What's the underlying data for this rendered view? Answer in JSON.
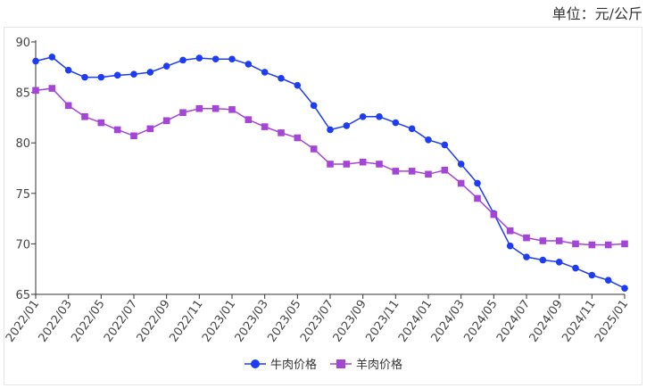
{
  "unit_label": "单位：元/公斤",
  "chart_data": {
    "type": "line",
    "title": "",
    "xlabel": "",
    "ylabel": "",
    "ylim": [
      65,
      90
    ],
    "yticks": [
      65,
      70,
      75,
      80,
      85,
      90
    ],
    "grid": false,
    "legend": "bottom",
    "x": [
      "2022/01",
      "2022/02",
      "2022/03",
      "2022/04",
      "2022/05",
      "2022/06",
      "2022/07",
      "2022/08",
      "2022/09",
      "2022/10",
      "2022/11",
      "2022/12",
      "2023/01",
      "2023/02",
      "2023/03",
      "2023/04",
      "2023/05",
      "2023/06",
      "2023/07",
      "2023/08",
      "2023/09",
      "2023/10",
      "2023/11",
      "2023/12",
      "2024/01",
      "2024/02",
      "2024/03",
      "2024/04",
      "2024/05",
      "2024/06",
      "2024/07",
      "2024/08",
      "2024/09",
      "2024/10",
      "2024/11",
      "2024/12",
      "2025/01"
    ],
    "xtick_labels": [
      "2022/01",
      "2022/03",
      "2022/05",
      "2022/07",
      "2022/09",
      "2022/11",
      "2023/01",
      "2023/03",
      "2023/05",
      "2023/07",
      "2023/09",
      "2023/11",
      "2024/01",
      "2024/03",
      "2024/05",
      "2024/07",
      "2024/09",
      "2024/11",
      "2025/01"
    ],
    "series": [
      {
        "name": "牛肉价格",
        "color": "#1f3cf5",
        "marker": "circle",
        "values": [
          88.1,
          88.5,
          87.2,
          86.5,
          86.5,
          86.7,
          86.8,
          87.0,
          87.6,
          88.2,
          88.4,
          88.3,
          88.3,
          87.8,
          87.0,
          86.4,
          85.7,
          83.7,
          81.3,
          81.7,
          82.6,
          82.6,
          82.0,
          81.4,
          80.3,
          79.8,
          77.9,
          76.0,
          73.0,
          69.8,
          68.7,
          68.4,
          68.2,
          67.6,
          66.9,
          66.4,
          65.6
        ]
      },
      {
        "name": "羊肉价格",
        "color": "#a545d8",
        "marker": "square",
        "values": [
          85.2,
          85.4,
          83.7,
          82.6,
          82.0,
          81.3,
          80.7,
          81.4,
          82.2,
          83.0,
          83.4,
          83.4,
          83.3,
          82.3,
          81.6,
          81.0,
          80.5,
          79.4,
          77.9,
          77.9,
          78.1,
          77.9,
          77.2,
          77.2,
          76.9,
          77.3,
          76.0,
          74.5,
          72.9,
          71.3,
          70.6,
          70.3,
          70.3,
          70.0,
          69.9,
          69.9,
          70.0
        ]
      }
    ]
  }
}
